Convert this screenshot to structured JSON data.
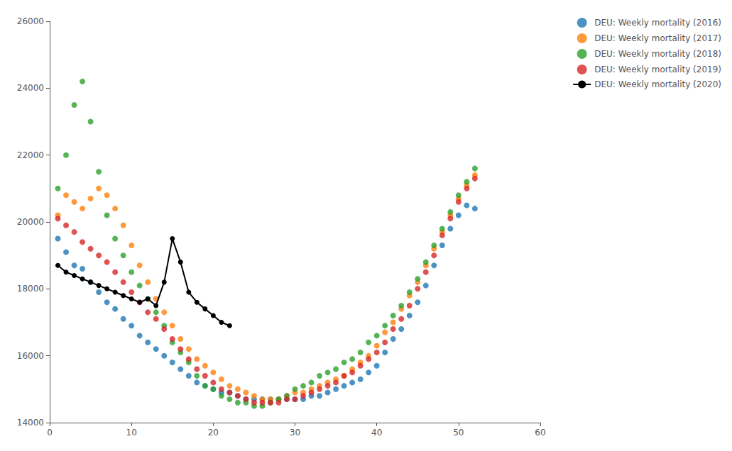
{
  "chart_data": {
    "type": "scatter",
    "legend": "upper right",
    "grid": false,
    "xlim": [
      0,
      60
    ],
    "xticks": [
      0,
      10,
      20,
      30,
      40,
      50,
      60
    ],
    "ylim": [
      14000,
      26000
    ],
    "yticks": [
      14000,
      16000,
      18000,
      20000,
      22000,
      24000,
      26000
    ],
    "series": [
      {
        "name": "DEU: Weekly mortality (2016)",
        "type": "scatter",
        "marker": "circle",
        "color": "#1f77b4",
        "x": [
          1,
          2,
          3,
          4,
          5,
          6,
          7,
          8,
          9,
          10,
          11,
          12,
          13,
          14,
          15,
          16,
          17,
          18,
          19,
          20,
          21,
          22,
          23,
          24,
          25,
          26,
          27,
          28,
          29,
          30,
          31,
          32,
          33,
          34,
          35,
          36,
          37,
          38,
          39,
          40,
          41,
          42,
          43,
          44,
          45,
          46,
          47,
          48,
          49,
          50,
          51,
          52
        ],
        "values": [
          19500,
          19100,
          18700,
          18600,
          18200,
          17900,
          17600,
          17400,
          17100,
          16900,
          16600,
          16400,
          16200,
          16000,
          15800,
          15600,
          15400,
          15200,
          15100,
          15000,
          14900,
          14900,
          14800,
          14700,
          14700,
          14700,
          14700,
          14700,
          14700,
          14700,
          14700,
          14800,
          14800,
          14900,
          15000,
          15100,
          15200,
          15300,
          15500,
          15700,
          16100,
          16500,
          16800,
          17200,
          17600,
          18100,
          18700,
          19300,
          19800,
          20200,
          20500,
          20400
        ]
      },
      {
        "name": "DEU: Weekly mortality (2017)",
        "type": "scatter",
        "marker": "circle",
        "color": "#ff7f0e",
        "x": [
          1,
          2,
          3,
          4,
          5,
          6,
          7,
          8,
          9,
          10,
          11,
          12,
          13,
          14,
          15,
          16,
          17,
          18,
          19,
          20,
          21,
          22,
          23,
          24,
          25,
          26,
          27,
          28,
          29,
          30,
          31,
          32,
          33,
          34,
          35,
          36,
          37,
          38,
          39,
          40,
          41,
          42,
          43,
          44,
          45,
          46,
          47,
          48,
          49,
          50,
          51,
          52
        ],
        "values": [
          20200,
          20800,
          20600,
          20400,
          20700,
          21000,
          20800,
          20400,
          19900,
          19300,
          18700,
          18200,
          17700,
          17300,
          16900,
          16500,
          16200,
          15900,
          15700,
          15500,
          15300,
          15100,
          15000,
          14900,
          14800,
          14700,
          14700,
          14700,
          14800,
          14900,
          14900,
          15000,
          15100,
          15200,
          15300,
          15400,
          15600,
          15800,
          16000,
          16300,
          16700,
          17000,
          17400,
          17800,
          18200,
          18700,
          19200,
          19700,
          20200,
          20700,
          21100,
          21400
        ]
      },
      {
        "name": "DEU: Weekly mortality (2018)",
        "type": "scatter",
        "marker": "circle",
        "color": "#2ca02c",
        "x": [
          1,
          2,
          3,
          4,
          5,
          6,
          7,
          8,
          9,
          10,
          11,
          12,
          13,
          14,
          15,
          16,
          17,
          18,
          19,
          20,
          21,
          22,
          23,
          24,
          25,
          26,
          27,
          28,
          29,
          30,
          31,
          32,
          33,
          34,
          35,
          36,
          37,
          38,
          39,
          40,
          41,
          42,
          43,
          44,
          45,
          46,
          47,
          48,
          49,
          50,
          51,
          52
        ],
        "values": [
          21000,
          22000,
          23500,
          24200,
          23000,
          21500,
          20200,
          19500,
          19000,
          18500,
          18100,
          17700,
          17300,
          16900,
          16400,
          16100,
          15800,
          15400,
          15100,
          15000,
          14800,
          14700,
          14600,
          14600,
          14500,
          14500,
          14600,
          14700,
          14800,
          15000,
          15100,
          15200,
          15400,
          15500,
          15600,
          15800,
          15900,
          16100,
          16400,
          16600,
          16900,
          17200,
          17500,
          17900,
          18300,
          18800,
          19300,
          19800,
          20300,
          20800,
          21200,
          21600
        ]
      },
      {
        "name": "DEU: Weekly mortality (2019)",
        "type": "scatter",
        "marker": "circle",
        "color": "#d62728",
        "x": [
          1,
          2,
          3,
          4,
          5,
          6,
          7,
          8,
          9,
          10,
          11,
          12,
          13,
          14,
          15,
          16,
          17,
          18,
          19,
          20,
          21,
          22,
          23,
          24,
          25,
          26,
          27,
          28,
          29,
          30,
          31,
          32,
          33,
          34,
          35,
          36,
          37,
          38,
          39,
          40,
          41,
          42,
          43,
          44,
          45,
          46,
          47,
          48,
          49,
          50,
          51,
          52
        ],
        "values": [
          20100,
          19900,
          19700,
          19400,
          19200,
          19000,
          18800,
          18500,
          18200,
          17900,
          17600,
          17300,
          17100,
          16800,
          16500,
          16200,
          15900,
          15600,
          15400,
          15200,
          15000,
          14900,
          14800,
          14700,
          14600,
          14600,
          14600,
          14600,
          14700,
          14700,
          14800,
          14900,
          15000,
          15100,
          15200,
          15400,
          15500,
          15700,
          15900,
          16100,
          16400,
          16800,
          17100,
          17500,
          18000,
          18500,
          19000,
          19600,
          20100,
          20600,
          21000,
          21300
        ]
      },
      {
        "name": "DEU: Weekly mortality (2020)",
        "type": "line",
        "marker": "circle",
        "color": "#000000",
        "x": [
          1,
          2,
          3,
          4,
          5,
          6,
          7,
          8,
          9,
          10,
          11,
          12,
          13,
          14,
          15,
          16,
          17,
          18,
          19,
          20,
          21,
          22
        ],
        "values": [
          18700,
          18500,
          18400,
          18300,
          18200,
          18100,
          18000,
          17900,
          17800,
          17700,
          17600,
          17700,
          17500,
          18200,
          19500,
          18800,
          17900,
          17600,
          17400,
          17200,
          17000,
          16900
        ]
      }
    ]
  }
}
